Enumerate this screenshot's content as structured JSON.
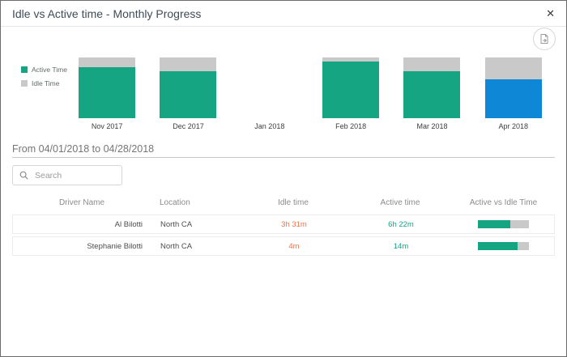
{
  "dialog": {
    "title": "Idle vs Active time - Monthly Progress",
    "close_label": "✕"
  },
  "chart_data": {
    "type": "bar",
    "stacked": true,
    "normalized_percent": true,
    "categories": [
      "Nov 2017",
      "Dec 2017",
      "Jan 2018",
      "Feb 2018",
      "Mar 2018",
      "Apr 2018"
    ],
    "series": [
      {
        "name": "Active Time",
        "color": "#16a583",
        "values": [
          84,
          78,
          0,
          93,
          77,
          64
        ]
      },
      {
        "name": "Idle Time",
        "color": "#c9c9c9",
        "values": [
          16,
          22,
          0,
          7,
          23,
          36
        ]
      }
    ],
    "selected_category": "Apr 2018",
    "selected_color": "#0e87d6",
    "legend_position": "left",
    "ylim": [
      0,
      100
    ],
    "grid": false
  },
  "section": {
    "date_range": "From 04/01/2018 to 04/28/2018"
  },
  "search": {
    "placeholder": "Search"
  },
  "table": {
    "columns": [
      "Driver Name",
      "Location",
      "Idle time",
      "Active time",
      "Active vs Idle Time"
    ],
    "rows": [
      {
        "driver_name": "Al Bilotti",
        "location": "North CA",
        "idle_time": "3h 31m",
        "active_time": "6h 22m",
        "active_pct": 64
      },
      {
        "driver_name": "Stephanie Bilotti",
        "location": "North CA",
        "idle_time": "4m",
        "active_time": "14m",
        "active_pct": 78
      }
    ],
    "idle_value_color": "#e8744e",
    "active_value_color": "#16a583",
    "progress_track_color": "#c9c9c9",
    "progress_fill_color": "#16a583"
  }
}
